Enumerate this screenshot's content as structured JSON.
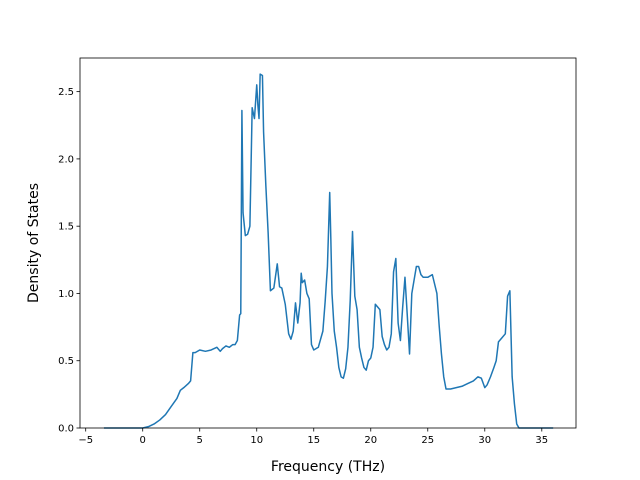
{
  "chart_data": {
    "type": "line",
    "xlabel": "Frequency (THz)",
    "ylabel": "Density of States",
    "xlim": [
      -5.5,
      38
    ],
    "ylim": [
      0,
      2.75
    ],
    "xticks": [
      -5,
      0,
      5,
      10,
      15,
      20,
      25,
      30,
      35
    ],
    "yticks": [
      0.0,
      0.5,
      1.0,
      1.5,
      2.0,
      2.5
    ],
    "xtick_labels": [
      "−5",
      "0",
      "5",
      "10",
      "15",
      "20",
      "25",
      "30",
      "35"
    ],
    "ytick_labels": [
      "0.0",
      "0.5",
      "1.0",
      "1.5",
      "2.0",
      "2.5"
    ],
    "grid": false,
    "legend": "none",
    "series": [
      {
        "color": "#1f77b4",
        "x": [
          -3.4,
          -2.0,
          -1.0,
          0.0,
          0.5,
          1.0,
          1.5,
          2.0,
          2.5,
          3.0,
          3.3,
          3.6,
          4.0,
          4.2,
          4.4,
          4.6,
          5.0,
          5.5,
          6.0,
          6.5,
          6.8,
          7.0,
          7.3,
          7.6,
          7.9,
          8.1,
          8.3,
          8.5,
          8.6,
          8.7,
          8.8,
          9.0,
          9.2,
          9.4,
          9.6,
          9.8,
          10.0,
          10.1,
          10.2,
          10.3,
          10.5,
          10.6,
          10.8,
          11.0,
          11.2,
          11.5,
          11.8,
          12.0,
          12.2,
          12.5,
          12.8,
          13.0,
          13.2,
          13.4,
          13.6,
          13.8,
          13.9,
          14.0,
          14.2,
          14.4,
          14.6,
          14.8,
          15.0,
          15.4,
          15.8,
          16.0,
          16.2,
          16.4,
          16.5,
          16.6,
          16.8,
          17.0,
          17.2,
          17.4,
          17.6,
          17.8,
          18.0,
          18.2,
          18.4,
          18.6,
          18.8,
          19.0,
          19.2,
          19.4,
          19.6,
          19.8,
          20.0,
          20.2,
          20.4,
          20.8,
          21.0,
          21.2,
          21.4,
          21.6,
          21.8,
          22.0,
          22.2,
          22.4,
          22.6,
          22.8,
          23.0,
          23.2,
          23.4,
          23.6,
          23.8,
          24.0,
          24.2,
          24.4,
          24.6,
          24.8,
          25.0,
          25.4,
          25.8,
          26.0,
          26.2,
          26.4,
          26.6,
          26.8,
          27.0,
          27.5,
          28.0,
          28.5,
          29.0,
          29.4,
          29.7,
          30.0,
          30.2,
          30.5,
          30.8,
          31.0,
          31.2,
          31.5,
          31.8,
          32.0,
          32.2,
          32.4,
          32.6,
          32.8,
          33.0,
          34.0,
          35.0,
          36.0
        ],
        "y": [
          0.0,
          0.0,
          0.0,
          0.0,
          0.01,
          0.03,
          0.06,
          0.1,
          0.16,
          0.22,
          0.28,
          0.3,
          0.33,
          0.35,
          0.56,
          0.56,
          0.58,
          0.57,
          0.58,
          0.6,
          0.57,
          0.59,
          0.61,
          0.6,
          0.62,
          0.62,
          0.65,
          0.84,
          0.85,
          2.36,
          1.6,
          1.43,
          1.44,
          1.5,
          2.38,
          2.3,
          2.55,
          2.4,
          2.3,
          2.63,
          2.62,
          2.2,
          1.8,
          1.45,
          1.02,
          1.04,
          1.22,
          1.05,
          1.04,
          0.92,
          0.7,
          0.66,
          0.72,
          0.93,
          0.78,
          0.93,
          1.15,
          1.08,
          1.1,
          1.0,
          0.96,
          0.62,
          0.58,
          0.6,
          0.72,
          0.94,
          1.2,
          1.75,
          1.4,
          1.0,
          0.72,
          0.6,
          0.45,
          0.38,
          0.37,
          0.44,
          0.6,
          0.95,
          1.46,
          0.98,
          0.88,
          0.6,
          0.52,
          0.45,
          0.43,
          0.5,
          0.52,
          0.6,
          0.92,
          0.88,
          0.68,
          0.62,
          0.58,
          0.6,
          0.7,
          1.16,
          1.26,
          0.78,
          0.65,
          0.9,
          1.12,
          0.84,
          0.55,
          1.0,
          1.1,
          1.2,
          1.2,
          1.14,
          1.12,
          1.12,
          1.12,
          1.14,
          1.0,
          0.76,
          0.55,
          0.38,
          0.29,
          0.29,
          0.29,
          0.3,
          0.31,
          0.33,
          0.35,
          0.38,
          0.37,
          0.3,
          0.32,
          0.38,
          0.45,
          0.5,
          0.64,
          0.67,
          0.7,
          0.98,
          1.02,
          0.38,
          0.18,
          0.03,
          0.0,
          0.0,
          0.0,
          0.0
        ]
      }
    ]
  }
}
